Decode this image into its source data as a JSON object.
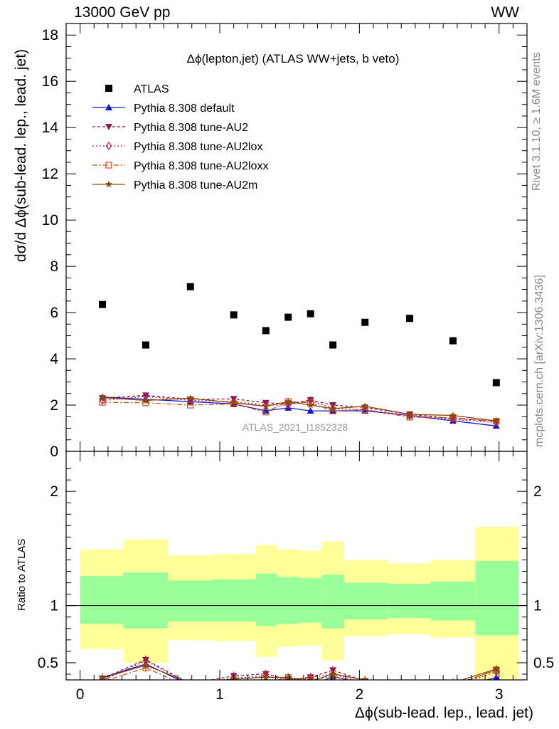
{
  "header": {
    "left": "13000 GeV pp",
    "right": "WW"
  },
  "side_texts": {
    "rivet": "Rivet 3.1.10, ≥ 1.6M events",
    "mcplots": "mcplots.cern.ch [arXiv:1306.3436]"
  },
  "chart_data": {
    "type": "scatter",
    "title": "Δϕ(lepton,jet) (ATLAS WW+jets, b veto)",
    "watermark": "ATLAS_2021_I1852328",
    "xlabel": "Δϕ(sub-lead. lep., lead. jet)",
    "ylabel": "dσ/d Δϕ(sub-lead. lep., lead. jet)",
    "ratio_ylabel": "Ratio to ATLAS",
    "xlim": [
      -0.1,
      3.2
    ],
    "ylim": [
      0,
      18.5
    ],
    "ratio_ylim": [
      0.35,
      2.35
    ],
    "x_ticks": [
      0,
      1,
      2,
      3
    ],
    "y_ticks": [
      0,
      2,
      4,
      6,
      8,
      10,
      12,
      14,
      16,
      18
    ],
    "ratio_ticks": [
      0.5,
      1,
      2
    ],
    "legend_position": "top-left",
    "bins": [
      [
        0,
        0.31
      ],
      [
        0.31,
        0.63
      ],
      [
        0.63,
        0.94
      ],
      [
        0.94,
        1.26
      ],
      [
        1.26,
        1.41
      ],
      [
        1.41,
        1.57
      ],
      [
        1.57,
        1.73
      ],
      [
        1.73,
        1.89
      ],
      [
        1.89,
        2.2
      ],
      [
        2.2,
        2.51
      ],
      [
        2.51,
        2.83
      ],
      [
        2.83,
        3.14
      ]
    ],
    "x": [
      0.16,
      0.47,
      0.79,
      1.1,
      1.33,
      1.49,
      1.65,
      1.81,
      2.04,
      2.36,
      2.67,
      2.98
    ],
    "band_inner": [
      [
        0.84,
        1.26
      ],
      [
        0.8,
        1.29
      ],
      [
        0.86,
        1.22
      ],
      [
        0.86,
        1.23
      ],
      [
        0.82,
        1.28
      ],
      [
        0.84,
        1.25
      ],
      [
        0.85,
        1.24
      ],
      [
        0.8,
        1.27
      ],
      [
        0.88,
        1.2
      ],
      [
        0.89,
        1.19
      ],
      [
        0.87,
        1.21
      ],
      [
        0.74,
        1.39
      ]
    ],
    "band_outer": [
      [
        0.62,
        1.49
      ],
      [
        0.5,
        1.58
      ],
      [
        0.7,
        1.44
      ],
      [
        0.69,
        1.45
      ],
      [
        0.55,
        1.53
      ],
      [
        0.64,
        1.49
      ],
      [
        0.65,
        1.48
      ],
      [
        0.52,
        1.56
      ],
      [
        0.73,
        1.4
      ],
      [
        0.75,
        1.37
      ],
      [
        0.72,
        1.4
      ],
      [
        0.3,
        1.69
      ]
    ],
    "series": [
      {
        "name": "ATLAS",
        "color": "#000000",
        "marker": "square",
        "dash": "",
        "values": [
          6.35,
          4.6,
          7.12,
          5.9,
          5.22,
          5.8,
          5.95,
          4.6,
          5.58,
          5.75,
          4.78,
          2.97
        ]
      },
      {
        "name": "Pythia 8.308 default",
        "color": "#1515cc",
        "marker": "triangle-up",
        "dash": "",
        "values": [
          2.35,
          2.25,
          2.15,
          2.05,
          1.75,
          1.88,
          1.75,
          1.75,
          1.75,
          1.55,
          1.32,
          1.1
        ]
      },
      {
        "name": "Pythia 8.308 tune-AU2",
        "color": "#8b1a4a",
        "marker": "triangle-down",
        "dash": "4,3",
        "values": [
          2.3,
          2.42,
          2.25,
          2.27,
          2.1,
          2.05,
          2.22,
          2.0,
          1.9,
          1.6,
          1.42,
          1.3
        ]
      },
      {
        "name": "Pythia 8.308 tune-AU2lox",
        "color": "#b0155a",
        "marker": "diamond-open",
        "dash": "2,3",
        "values": [
          2.2,
          2.38,
          2.2,
          2.15,
          2.0,
          2.0,
          2.2,
          1.85,
          1.8,
          1.55,
          1.38,
          1.25
        ]
      },
      {
        "name": "Pythia 8.308 tune-AU2loxx",
        "color": "#c8501a",
        "marker": "square-open",
        "dash": "7,3,2,3",
        "values": [
          2.12,
          2.1,
          2.0,
          2.05,
          1.7,
          2.15,
          2.1,
          1.75,
          1.8,
          1.48,
          1.45,
          1.3
        ]
      },
      {
        "name": "Pythia 8.308 tune-AU2m",
        "color": "#8b4a0a",
        "marker": "star",
        "dash": "",
        "values": [
          2.32,
          2.2,
          2.3,
          2.1,
          1.95,
          2.15,
          2.0,
          1.85,
          1.95,
          1.6,
          1.55,
          1.32
        ]
      }
    ]
  }
}
